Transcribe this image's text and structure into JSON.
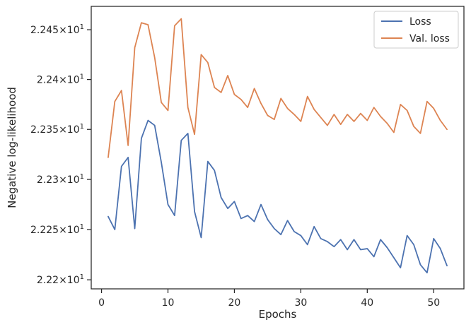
{
  "chart_data": {
    "type": "line",
    "xlabel": "Epochs",
    "ylabel": "Negative log-likelihood",
    "xlim": [
      -1.55,
      54.55
    ],
    "ylim": [
      22.191,
      22.4735
    ],
    "x_ticks": [
      0,
      10,
      20,
      30,
      40,
      50
    ],
    "y_ticks": [
      22.2,
      22.25,
      22.3,
      22.35,
      22.4,
      22.45
    ],
    "y_tick_labels": [
      {
        "mantissa": "2.22",
        "base": "10",
        "exp": "1"
      },
      {
        "mantissa": "2.225",
        "base": "10",
        "exp": "1"
      },
      {
        "mantissa": "2.23",
        "base": "10",
        "exp": "1"
      },
      {
        "mantissa": "2.235",
        "base": "10",
        "exp": "1"
      },
      {
        "mantissa": "2.24",
        "base": "10",
        "exp": "1"
      },
      {
        "mantissa": "2.245",
        "base": "10",
        "exp": "1"
      }
    ],
    "y_scale": "log",
    "grid": false,
    "legend_position": "top-right",
    "x": [
      1,
      2,
      3,
      4,
      5,
      6,
      7,
      8,
      9,
      10,
      11,
      12,
      13,
      14,
      15,
      16,
      17,
      18,
      19,
      20,
      21,
      22,
      23,
      24,
      25,
      26,
      27,
      28,
      29,
      30,
      31,
      32,
      33,
      34,
      35,
      36,
      37,
      38,
      39,
      40,
      41,
      42,
      43,
      44,
      45,
      46,
      47,
      48,
      49,
      50,
      51,
      52
    ],
    "series": [
      {
        "name": "Loss",
        "color": "#4c72b0",
        "values": [
          22.263,
          22.25,
          22.313,
          22.322,
          22.251,
          22.341,
          22.359,
          22.354,
          22.317,
          22.275,
          22.264,
          22.339,
          22.346,
          22.268,
          22.242,
          22.318,
          22.309,
          22.282,
          22.271,
          22.278,
          22.261,
          22.264,
          22.258,
          22.275,
          22.26,
          22.251,
          22.245,
          22.259,
          22.248,
          22.244,
          22.235,
          22.253,
          22.241,
          22.238,
          22.233,
          22.24,
          22.23,
          22.24,
          22.23,
          22.231,
          22.223,
          22.24,
          22.232,
          22.222,
          22.212,
          22.244,
          22.235,
          22.215,
          22.207,
          22.241,
          22.231,
          22.214
        ]
      },
      {
        "name": "Val. loss",
        "color": "#dd8452",
        "values": [
          22.322,
          22.378,
          22.389,
          22.334,
          22.432,
          22.457,
          22.455,
          22.422,
          22.377,
          22.369,
          22.454,
          22.461,
          22.372,
          22.345,
          22.425,
          22.417,
          22.392,
          22.387,
          22.404,
          22.385,
          22.38,
          22.372,
          22.391,
          22.376,
          22.364,
          22.36,
          22.381,
          22.371,
          22.365,
          22.358,
          22.383,
          22.37,
          22.362,
          22.354,
          22.365,
          22.355,
          22.365,
          22.358,
          22.366,
          22.359,
          22.372,
          22.363,
          22.356,
          22.347,
          22.375,
          22.369,
          22.353,
          22.346,
          22.378,
          22.371,
          22.359,
          22.35
        ]
      }
    ]
  }
}
